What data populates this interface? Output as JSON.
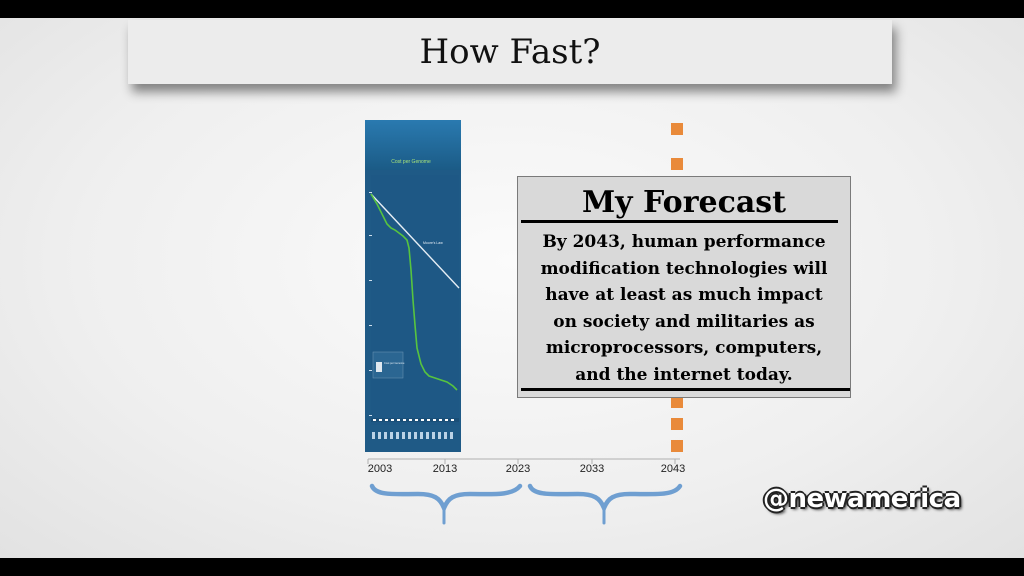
{
  "slide": {
    "title": "How Fast?"
  },
  "embedded_chart": {
    "title": "Cost per Genome",
    "annotation": "Moore's Law",
    "legend_label": "Cost per Genome"
  },
  "timeline": {
    "years": [
      "2003",
      "2013",
      "2023",
      "2033",
      "2043"
    ],
    "brace_color": "#6f9fd1",
    "marker_color": "#e98a3a"
  },
  "forecast": {
    "title": "My Forecast",
    "lines": [
      "By 2043, human performance",
      "modification technologies will",
      "have at least as much impact",
      "on society and militaries as",
      "microprocessors, computers,",
      "and the internet today."
    ]
  },
  "watermark": {
    "text": "@newamerica"
  }
}
